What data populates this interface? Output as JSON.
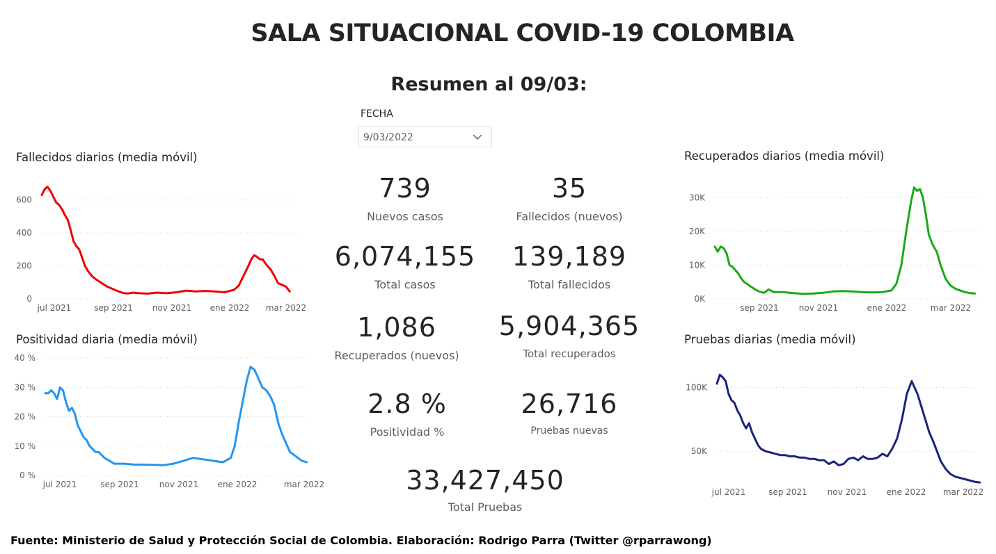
{
  "header": {
    "title": "SALA SITUACIONAL COVID-19 COLOMBIA",
    "subtitle": "Resumen al 09/03:"
  },
  "filter": {
    "label": "FECHA",
    "value": "9/03/2022",
    "icon": "chevron-down-icon"
  },
  "kpis": {
    "nuevos_casos": {
      "value": "739",
      "label": "Nuevos casos"
    },
    "fallecidos_nuevos": {
      "value": "35",
      "label": "Fallecidos (nuevos)"
    },
    "total_casos": {
      "value": "6,074,155",
      "label": "Total casos"
    },
    "total_fallecidos": {
      "value": "139,189",
      "label": "Total fallecidos"
    },
    "recuperados_nuevos": {
      "value": "1,086",
      "label": "Recuperados (nuevos)"
    },
    "total_recuperados": {
      "value": "5,904,365",
      "label": "Total recuperados"
    },
    "positividad": {
      "value": "2.8 %",
      "label": "Positividad %"
    },
    "pruebas_nuevas": {
      "value": "26,716",
      "label": "Pruebas nuevas"
    },
    "total_pruebas": {
      "value": "33,427,450",
      "label": "Total Pruebas"
    }
  },
  "footer": "Fuente: Ministerio de Salud y Protección Social de Colombia. Elaboración: Rodrigo Parra (Twitter @rparrawong)",
  "chart_data": [
    {
      "id": "fallecidos",
      "type": "line",
      "title": "Fallecidos diarios (media móvil)",
      "color": "#ee0000",
      "ylim": [
        0,
        700
      ],
      "yticks": [
        0,
        200,
        400,
        600
      ],
      "ytick_labels": [
        "0",
        "200",
        "400",
        "600"
      ],
      "xlim": [
        0,
        268
      ],
      "xticks": [
        8,
        70,
        131,
        193,
        252
      ],
      "xtick_labels": [
        "jul 2021",
        "sep 2021",
        "nov 2021",
        "ene 2022",
        "mar 2022"
      ],
      "grid": true,
      "x": [
        0,
        3,
        6,
        9,
        12,
        15,
        18,
        21,
        24,
        27,
        30,
        33,
        36,
        39,
        42,
        45,
        48,
        52,
        56,
        60,
        64,
        68,
        72,
        76,
        80,
        85,
        90,
        95,
        100,
        110,
        120,
        130,
        140,
        150,
        160,
        170,
        180,
        190,
        200,
        205,
        210,
        215,
        218,
        221,
        224,
        227,
        230,
        234,
        238,
        242,
        246,
        250,
        254,
        258
      ],
      "y": [
        630,
        665,
        680,
        655,
        620,
        585,
        570,
        545,
        510,
        480,
        420,
        350,
        320,
        300,
        250,
        200,
        170,
        140,
        120,
        105,
        90,
        75,
        65,
        55,
        45,
        35,
        33,
        38,
        35,
        32,
        38,
        34,
        40,
        50,
        45,
        48,
        45,
        40,
        55,
        80,
        140,
        200,
        240,
        265,
        255,
        240,
        240,
        205,
        180,
        140,
        95,
        85,
        75,
        45
      ]
    },
    {
      "id": "positividad",
      "type": "line",
      "title": "Positividad diaria (media móvil)",
      "color": "#2196f3",
      "ylim": [
        0,
        40
      ],
      "yticks": [
        0,
        10,
        20,
        30,
        40
      ],
      "ytick_labels": [
        "0 %",
        "10 %",
        "20 %",
        "30 %",
        "40 %"
      ],
      "xlim": [
        0,
        268
      ],
      "xticks": [
        8,
        70,
        131,
        193,
        252
      ],
      "xtick_labels": [
        "jul 2021",
        "sep 2021",
        "nov 2021",
        "ene 2022",
        "mar 2022"
      ],
      "grid": true,
      "x": [
        0,
        3,
        6,
        9,
        12,
        15,
        18,
        21,
        24,
        27,
        30,
        33,
        36,
        39,
        42,
        45,
        48,
        51,
        54,
        57,
        60,
        65,
        70,
        75,
        80,
        90,
        100,
        110,
        120,
        130,
        140,
        150,
        160,
        170,
        180,
        188,
        192,
        196,
        200,
        204,
        208,
        212,
        216,
        220,
        224,
        228,
        232,
        236,
        240,
        244,
        248,
        252,
        256,
        260,
        265
      ],
      "y": [
        28,
        28,
        29,
        28,
        26,
        30,
        29,
        25,
        22,
        23,
        21,
        17,
        15,
        13,
        12,
        10,
        9,
        8,
        8,
        7,
        6,
        5,
        4,
        4,
        4,
        3.7,
        3.7,
        3.6,
        3.5,
        4,
        5,
        6,
        5.5,
        5,
        4.5,
        6,
        10,
        18,
        25,
        32,
        37,
        36,
        33,
        30,
        29,
        27,
        24,
        18,
        14,
        11,
        8,
        7,
        6,
        5,
        4.5
      ]
    },
    {
      "id": "recuperados",
      "type": "line",
      "title": "Recuperados diarios (media móvil)",
      "color": "#1aaa1a",
      "ylim": [
        0,
        35000
      ],
      "yticks": [
        0,
        10000,
        20000,
        30000
      ],
      "ytick_labels": [
        "0K",
        "10K",
        "20K",
        "30K"
      ],
      "xlim": [
        0,
        268
      ],
      "xticks": [
        48,
        110,
        171,
        230,
        290
      ],
      "xtick_labels": [
        "sep 2021",
        "nov 2021",
        "ene 2022",
        "mar 2022"
      ],
      "grid": true,
      "x": [
        0,
        3,
        6,
        9,
        12,
        15,
        18,
        21,
        24,
        27,
        30,
        35,
        40,
        45,
        50,
        55,
        60,
        70,
        80,
        90,
        100,
        110,
        120,
        130,
        140,
        150,
        160,
        170,
        180,
        185,
        190,
        195,
        200,
        203,
        206,
        209,
        212,
        215,
        218,
        222,
        226,
        230,
        235,
        240,
        245,
        250,
        255,
        260,
        265
      ],
      "y": [
        15500,
        14000,
        15500,
        15000,
        13500,
        10000,
        9500,
        8500,
        7500,
        6000,
        5000,
        4000,
        3000,
        2200,
        1800,
        2800,
        2000,
        2000,
        1700,
        1500,
        1600,
        1800,
        2200,
        2300,
        2200,
        2000,
        1900,
        2000,
        2500,
        4500,
        10000,
        20000,
        29000,
        33000,
        32000,
        32500,
        30000,
        25000,
        19000,
        16000,
        14000,
        10000,
        6000,
        4000,
        3000,
        2500,
        2000,
        1700,
        1600
      ]
    },
    {
      "id": "pruebas",
      "type": "line",
      "title": "Pruebas diarias (media móvil)",
      "color": "#1a237e",
      "ylim": [
        25000,
        115000
      ],
      "yticks": [
        50000,
        100000
      ],
      "ytick_labels": [
        "50K",
        "100K"
      ],
      "xlim": [
        0,
        268
      ],
      "xticks": [
        8,
        70,
        131,
        193,
        252
      ],
      "xtick_labels": [
        "jul 2021",
        "sep 2021",
        "nov 2021",
        "ene 2022",
        "mar 2022"
      ],
      "grid": true,
      "x": [
        0,
        3,
        6,
        9,
        12,
        15,
        18,
        21,
        24,
        27,
        30,
        33,
        36,
        39,
        42,
        45,
        50,
        55,
        60,
        65,
        70,
        75,
        80,
        85,
        90,
        95,
        100,
        105,
        110,
        115,
        120,
        125,
        130,
        135,
        140,
        145,
        150,
        155,
        160,
        165,
        170,
        175,
        180,
        185,
        190,
        195,
        200,
        203,
        206,
        210,
        214,
        218,
        222,
        226,
        230,
        235,
        240,
        245,
        250,
        255,
        260,
        265,
        270
      ],
      "y": [
        103000,
        110000,
        108000,
        105000,
        95000,
        90000,
        88000,
        82000,
        78000,
        72000,
        68000,
        72000,
        65000,
        60000,
        55000,
        52000,
        50000,
        49000,
        48000,
        47000,
        47000,
        46000,
        46000,
        45000,
        45000,
        44000,
        44000,
        43000,
        43000,
        40000,
        42000,
        39000,
        40000,
        44000,
        45000,
        43000,
        46000,
        44000,
        44000,
        45000,
        48000,
        46000,
        52000,
        60000,
        75000,
        95000,
        105000,
        100000,
        95000,
        85000,
        75000,
        65000,
        58000,
        50000,
        42000,
        36000,
        32000,
        30000,
        29000,
        28000,
        27000,
        26000,
        25500
      ]
    }
  ]
}
